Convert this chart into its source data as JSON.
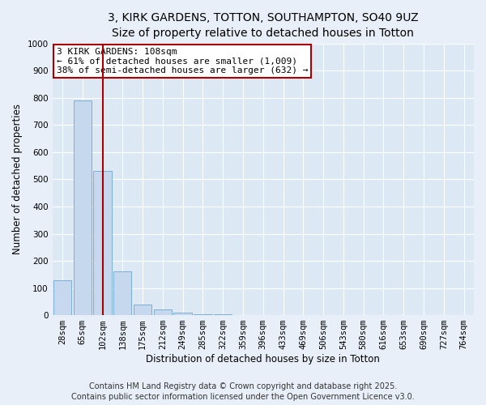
{
  "title_line1": "3, KIRK GARDENS, TOTTON, SOUTHAMPTON, SO40 9UZ",
  "title_line2": "Size of property relative to detached houses in Totton",
  "xlabel": "Distribution of detached houses by size in Totton",
  "ylabel": "Number of detached properties",
  "categories": [
    "28sqm",
    "65sqm",
    "102sqm",
    "138sqm",
    "175sqm",
    "212sqm",
    "249sqm",
    "285sqm",
    "322sqm",
    "359sqm",
    "396sqm",
    "433sqm",
    "469sqm",
    "506sqm",
    "543sqm",
    "580sqm",
    "616sqm",
    "653sqm",
    "690sqm",
    "727sqm",
    "764sqm"
  ],
  "values": [
    130,
    790,
    530,
    160,
    40,
    20,
    8,
    3,
    2,
    1,
    1,
    0,
    0,
    0,
    0,
    0,
    0,
    0,
    0,
    0,
    0
  ],
  "bar_color": "#c5d8ee",
  "bar_edge_color": "#7bafd4",
  "property_bin_index": 2,
  "vline_color": "#aa0000",
  "annotation_text": "3 KIRK GARDENS: 108sqm\n← 61% of detached houses are smaller (1,009)\n38% of semi-detached houses are larger (632) →",
  "annotation_box_edge": "#aa0000",
  "footer_line1": "Contains HM Land Registry data © Crown copyright and database right 2025.",
  "footer_line2": "Contains public sector information licensed under the Open Government Licence v3.0.",
  "ylim": [
    0,
    1000
  ],
  "yticks": [
    0,
    100,
    200,
    300,
    400,
    500,
    600,
    700,
    800,
    900,
    1000
  ],
  "bg_color": "#e8eff8",
  "plot_bg_color": "#dce8f4",
  "grid_color": "#ffffff",
  "title_fontsize": 10,
  "subtitle_fontsize": 9,
  "axis_label_fontsize": 8.5,
  "tick_fontsize": 7.5,
  "annotation_fontsize": 8,
  "footer_fontsize": 7
}
